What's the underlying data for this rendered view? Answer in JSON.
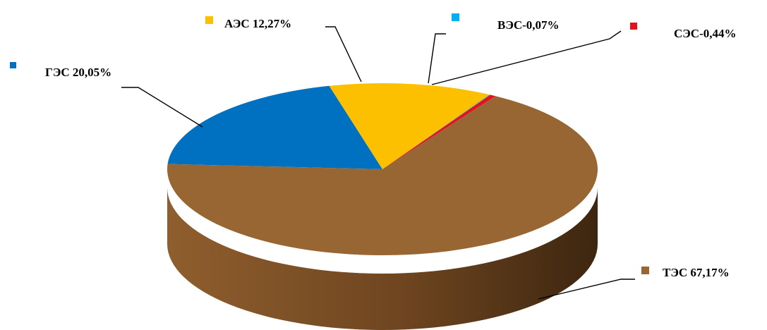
{
  "chart_data": {
    "type": "pie",
    "title": "",
    "legend": "none",
    "slices": [
      {
        "label": "ГЭС 20,05%",
        "value": 20.05,
        "color": "#0070c0"
      },
      {
        "label": "АЭС 12,27%",
        "value": 12.27,
        "color": "#fcc000"
      },
      {
        "label": "ВЭС-0,07%",
        "value": 0.07,
        "color": "#00b0f0"
      },
      {
        "label": "СЭС-0,44%",
        "value": 0.44,
        "color": "#e8101a"
      },
      {
        "label": "ТЭС 67,17%",
        "value": 67.17,
        "color": "#986632"
      }
    ]
  }
}
